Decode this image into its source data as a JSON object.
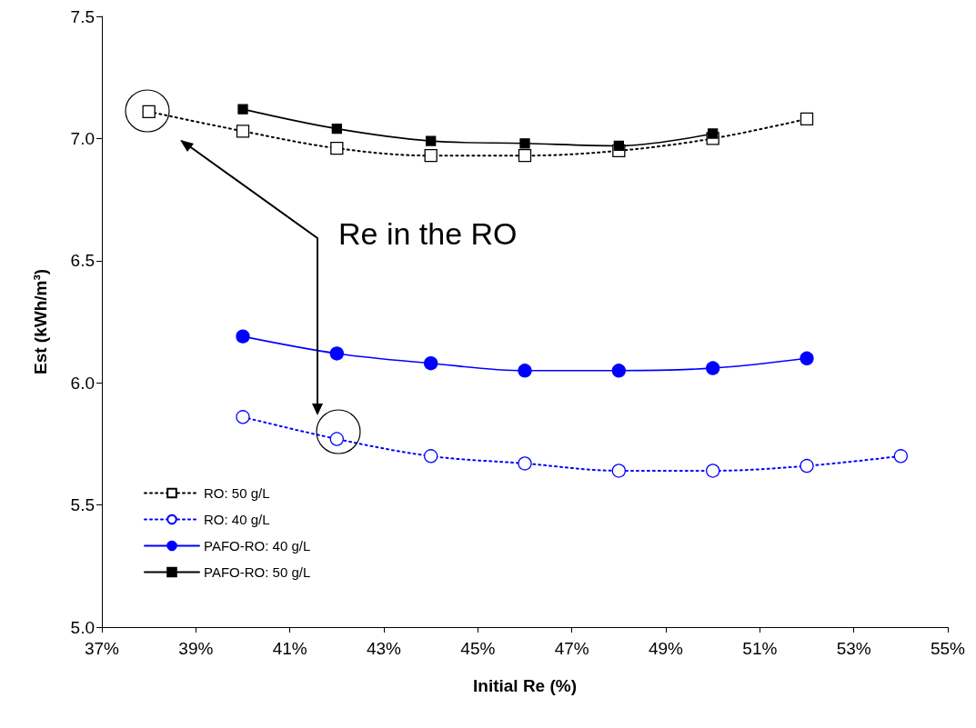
{
  "chart_data": {
    "type": "line",
    "xlabel": "Initial Re (%)",
    "ylabel": "Est (kWh/m³)",
    "xlim": [
      37,
      55
    ],
    "xticks": [
      {
        "value": 37,
        "label": "37%"
      },
      {
        "value": 39,
        "label": "39%"
      },
      {
        "value": 41,
        "label": "41%"
      },
      {
        "value": 43,
        "label": "43%"
      },
      {
        "value": 45,
        "label": "45%"
      },
      {
        "value": 47,
        "label": "47%"
      },
      {
        "value": 49,
        "label": "49%"
      },
      {
        "value": 51,
        "label": "51%"
      },
      {
        "value": 53,
        "label": "53%"
      },
      {
        "value": 55,
        "label": "55%"
      }
    ],
    "ylim": [
      5,
      7.5
    ],
    "yticks": [
      {
        "value": 5,
        "label": "5.0"
      },
      {
        "value": 5.5,
        "label": "5.5"
      },
      {
        "value": 6,
        "label": "6.0"
      },
      {
        "value": 6.5,
        "label": "6.5"
      },
      {
        "value": 7,
        "label": "7.0"
      },
      {
        "value": 7.5,
        "label": "7.5"
      }
    ],
    "grid": false,
    "legend": "bottom left",
    "series": [
      {
        "name": "RO: 50 g/L",
        "color": "#000000",
        "marker": "square",
        "line_style": "dotted",
        "x": [
          38,
          40,
          42,
          44,
          46,
          48,
          50,
          52
        ],
        "values": [
          7.11,
          7.03,
          6.96,
          6.93,
          6.93,
          6.95,
          7.0,
          7.08
        ]
      },
      {
        "name": "RO: 40 g/L",
        "color": "#0000ff",
        "marker": "circle",
        "line_style": "dotted",
        "x": [
          40,
          42,
          44,
          46,
          48,
          50,
          52,
          54
        ],
        "values": [
          5.86,
          5.77,
          5.7,
          5.67,
          5.64,
          5.64,
          5.66,
          5.7
        ]
      },
      {
        "name": "PAFO-RO: 40 g/L",
        "color": "#0000ff",
        "marker": "circle",
        "line_style": "solid",
        "x": [
          40,
          42,
          44,
          46,
          48,
          50,
          52
        ],
        "values": [
          6.19,
          6.12,
          6.08,
          6.05,
          6.05,
          6.06,
          6.1
        ]
      },
      {
        "name": "PAFO-RO: 50 g/L",
        "color": "#000000",
        "marker": "square",
        "line_style": "solid",
        "x": [
          40,
          42,
          44,
          46,
          48,
          50
        ],
        "values": [
          7.12,
          7.04,
          6.99,
          6.98,
          6.97,
          7.02
        ]
      }
    ],
    "annotations": [
      "Re in the RO"
    ]
  }
}
